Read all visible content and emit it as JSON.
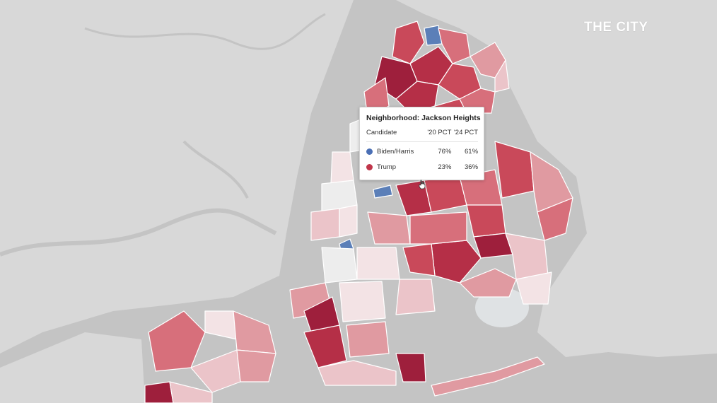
{
  "brand": "THE CITY",
  "tooltip": {
    "title": "Neighborhood: Jackson Heights",
    "columns": [
      "Candidate",
      "'20 PCT",
      "'24 PCT"
    ],
    "rows": [
      {
        "candidate": "Biden/Harris",
        "pct_20": "76%",
        "pct_24": "61%",
        "color": "#4a6fb5"
      },
      {
        "candidate": "Trump",
        "pct_20": "23%",
        "pct_24": "36%",
        "color": "#c0354a"
      }
    ]
  },
  "colors": {
    "background": "#c9c9c9",
    "land": "#d6d6d6",
    "water": "#c4c4c4",
    "democratic_shift": "#5b7fb8",
    "republican_shift_scale": [
      "#f3e3e5",
      "#ebc4c9",
      "#e09aa1",
      "#d76f7b",
      "#c9495a",
      "#b52f47",
      "#9e1f3c"
    ],
    "neutral": "#ededed"
  }
}
